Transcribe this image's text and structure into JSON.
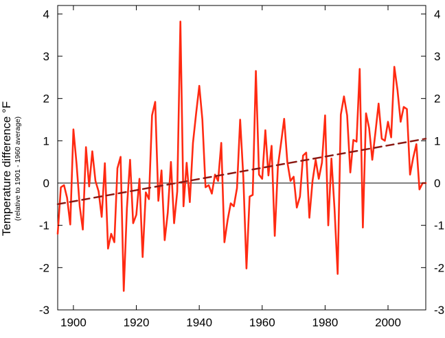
{
  "chart_data": {
    "type": "line",
    "title": "",
    "ylabel": "Temperature difference °F",
    "ylabel_note": "(relative to 1901 - 1960 average)",
    "xlabel": "",
    "xlim": [
      1895,
      2012
    ],
    "ylim": [
      -3,
      4.2
    ],
    "x_ticks": [
      1900,
      1920,
      1940,
      1960,
      1980,
      2000
    ],
    "y_ticks": [
      -3,
      -2,
      -1,
      0,
      1,
      2,
      3,
      4
    ],
    "y_ticks_mirrored_right": true,
    "zero_line": true,
    "grid": false,
    "legend": "none",
    "series": [
      {
        "style": "line",
        "color": "#ff2a12",
        "x": [
          1895,
          1896,
          1897,
          1898,
          1899,
          1900,
          1901,
          1902,
          1903,
          1904,
          1905,
          1906,
          1907,
          1908,
          1909,
          1910,
          1911,
          1912,
          1913,
          1914,
          1915,
          1916,
          1917,
          1918,
          1919,
          1920,
          1921,
          1922,
          1923,
          1924,
          1925,
          1926,
          1927,
          1928,
          1929,
          1930,
          1931,
          1932,
          1933,
          1934,
          1935,
          1936,
          1937,
          1938,
          1939,
          1940,
          1941,
          1942,
          1943,
          1944,
          1945,
          1946,
          1947,
          1948,
          1949,
          1950,
          1951,
          1952,
          1953,
          1954,
          1955,
          1956,
          1957,
          1958,
          1959,
          1960,
          1961,
          1962,
          1963,
          1964,
          1965,
          1966,
          1967,
          1968,
          1969,
          1970,
          1971,
          1972,
          1973,
          1974,
          1975,
          1976,
          1977,
          1978,
          1979,
          1980,
          1981,
          1982,
          1983,
          1984,
          1985,
          1986,
          1987,
          1988,
          1989,
          1990,
          1991,
          1992,
          1993,
          1994,
          1995,
          1996,
          1997,
          1998,
          1999,
          2000,
          2001,
          2002,
          2003,
          2004,
          2005,
          2006,
          2007,
          2008,
          2009,
          2010,
          2011,
          2012
        ],
        "y": [
          -1.2,
          -0.1,
          -0.05,
          -0.35,
          -0.98,
          1.27,
          0.45,
          -0.55,
          -1.1,
          0.85,
          -0.08,
          0.75,
          0.05,
          -0.2,
          -0.8,
          0.47,
          -1.55,
          -1.2,
          -1.4,
          0.35,
          0.62,
          -2.55,
          -0.6,
          0.55,
          -0.95,
          -0.75,
          0.1,
          -1.75,
          -0.22,
          -0.38,
          1.6,
          1.92,
          -0.42,
          0.3,
          -1.35,
          -0.7,
          0.5,
          -0.95,
          -0.2,
          3.82,
          -0.55,
          0.48,
          -0.45,
          0.95,
          1.65,
          2.3,
          1.5,
          -0.1,
          -0.05,
          -0.25,
          0.2,
          0.05,
          0.95,
          -1.4,
          -0.88,
          -0.48,
          -0.55,
          -0.12,
          1.5,
          0.15,
          -2.02,
          -0.32,
          -0.28,
          2.65,
          0.2,
          0.1,
          1.25,
          0.18,
          0.88,
          -1.25,
          0.4,
          0.95,
          1.52,
          0.5,
          0.05,
          0.15,
          -0.58,
          -0.32,
          0.65,
          0.72,
          -0.82,
          0.05,
          0.55,
          0.1,
          0.48,
          1.6,
          -1,
          0.58,
          -0.6,
          -2.15,
          1.62,
          2.05,
          1.6,
          0.25,
          1.02,
          0.98,
          2.7,
          -1.05,
          1.65,
          1.3,
          0.55,
          1.2,
          1.88,
          1.05,
          1,
          1.45,
          1.08,
          2.75,
          2.2,
          1.45,
          1.8,
          1.75,
          0.2,
          0.6,
          0.92,
          -0.15,
          0,
          0
        ]
      },
      {
        "style": "dashed-trend",
        "color": "#8b1a14",
        "x": [
          1895,
          2012
        ],
        "y": [
          -0.5,
          1.05
        ]
      }
    ]
  }
}
